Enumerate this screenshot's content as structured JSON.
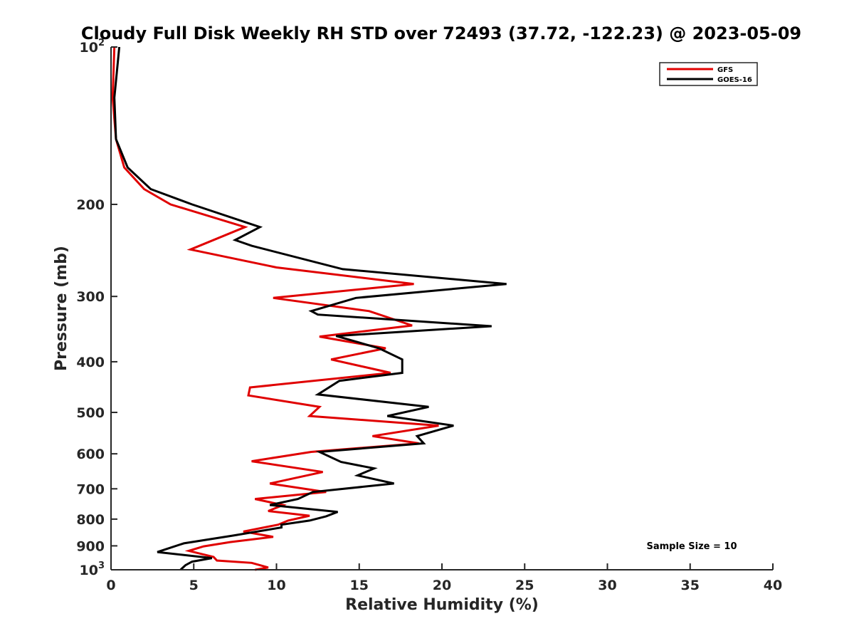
{
  "chart_data": {
    "type": "line",
    "title": "Cloudy Full Disk Weekly RH STD over 72493 (37.72, -122.23) @ 2023-05-09",
    "xlabel": "Relative Humidity (%)",
    "ylabel": "Pressure (mb)",
    "xlim": [
      0,
      40
    ],
    "ylim": [
      100,
      1000
    ],
    "y_scale": "log",
    "y_reversed": true,
    "grid": false,
    "legend_position": "top-right",
    "x_ticks": [
      0,
      5,
      10,
      15,
      20,
      25,
      30,
      35,
      40
    ],
    "y_ticks": [
      {
        "value": 100,
        "base": "10",
        "exp": "2"
      },
      {
        "value": 200,
        "label": "200"
      },
      {
        "value": 300,
        "label": "300"
      },
      {
        "value": 400,
        "label": "400"
      },
      {
        "value": 500,
        "label": "500"
      },
      {
        "value": 600,
        "label": "600"
      },
      {
        "value": 700,
        "label": "700"
      },
      {
        "value": 800,
        "label": "800"
      },
      {
        "value": 900,
        "label": "900"
      },
      {
        "value": 1000,
        "base": "10",
        "exp": "3"
      }
    ],
    "annotation": "Sample Size = 10",
    "series": [
      {
        "name": "GFS",
        "color": "#e00000",
        "points": [
          [
            0.2,
            100
          ],
          [
            0.1,
            125
          ],
          [
            0.3,
            150
          ],
          [
            0.8,
            170
          ],
          [
            2.0,
            187
          ],
          [
            3.6,
            200
          ],
          [
            8.1,
            221
          ],
          [
            4.8,
            244
          ],
          [
            10.0,
            264
          ],
          [
            18.3,
            284
          ],
          [
            9.8,
            302
          ],
          [
            15.6,
            320
          ],
          [
            18.2,
            341
          ],
          [
            12.6,
            358
          ],
          [
            16.6,
            377
          ],
          [
            13.3,
            396
          ],
          [
            16.9,
            420
          ],
          [
            8.4,
            448
          ],
          [
            8.3,
            464
          ],
          [
            12.6,
            488
          ],
          [
            12.0,
            508
          ],
          [
            19.8,
            530
          ],
          [
            15.8,
            555
          ],
          [
            18.6,
            573
          ],
          [
            12.1,
            595
          ],
          [
            8.5,
            620
          ],
          [
            12.8,
            650
          ],
          [
            9.6,
            684
          ],
          [
            13.0,
            710
          ],
          [
            8.7,
            732
          ],
          [
            10.4,
            752
          ],
          [
            9.5,
            772
          ],
          [
            12.0,
            788
          ],
          [
            10.7,
            805
          ],
          [
            10.1,
            820
          ],
          [
            8.0,
            845
          ],
          [
            9.8,
            865
          ],
          [
            7.2,
            885
          ],
          [
            5.6,
            902
          ],
          [
            4.7,
            920
          ],
          [
            6.2,
            945
          ],
          [
            6.4,
            960
          ],
          [
            8.5,
            970
          ],
          [
            9.0,
            980
          ],
          [
            9.5,
            990
          ],
          [
            8.7,
            1000
          ]
        ]
      },
      {
        "name": "GOES-16",
        "color": "#000000",
        "points": [
          [
            0.5,
            100
          ],
          [
            0.2,
            125
          ],
          [
            0.3,
            150
          ],
          [
            1.0,
            170
          ],
          [
            2.4,
            187
          ],
          [
            4.9,
            200
          ],
          [
            9.0,
            221
          ],
          [
            7.5,
            234
          ],
          [
            8.5,
            240
          ],
          [
            14.0,
            266
          ],
          [
            23.9,
            284
          ],
          [
            14.8,
            302
          ],
          [
            12.1,
            320
          ],
          [
            12.5,
            325
          ],
          [
            23.0,
            342
          ],
          [
            13.6,
            357
          ],
          [
            16.2,
            377
          ],
          [
            17.6,
            396
          ],
          [
            17.6,
            420
          ],
          [
            13.8,
            435
          ],
          [
            12.5,
            462
          ],
          [
            19.2,
            488
          ],
          [
            16.7,
            508
          ],
          [
            20.7,
            530
          ],
          [
            18.5,
            555
          ],
          [
            18.9,
            573
          ],
          [
            12.6,
            595
          ],
          [
            13.9,
            622
          ],
          [
            15.9,
            640
          ],
          [
            14.9,
            660
          ],
          [
            17.1,
            684
          ],
          [
            12.2,
            710
          ],
          [
            11.3,
            732
          ],
          [
            9.6,
            752
          ],
          [
            13.7,
            775
          ],
          [
            13.0,
            790
          ],
          [
            12.0,
            805
          ],
          [
            10.3,
            820
          ],
          [
            10.3,
            830
          ],
          [
            7.4,
            860
          ],
          [
            4.4,
            890
          ],
          [
            2.8,
            925
          ],
          [
            6.1,
            950
          ],
          [
            4.9,
            965
          ],
          [
            4.5,
            980
          ],
          [
            4.2,
            1000
          ]
        ]
      }
    ]
  }
}
